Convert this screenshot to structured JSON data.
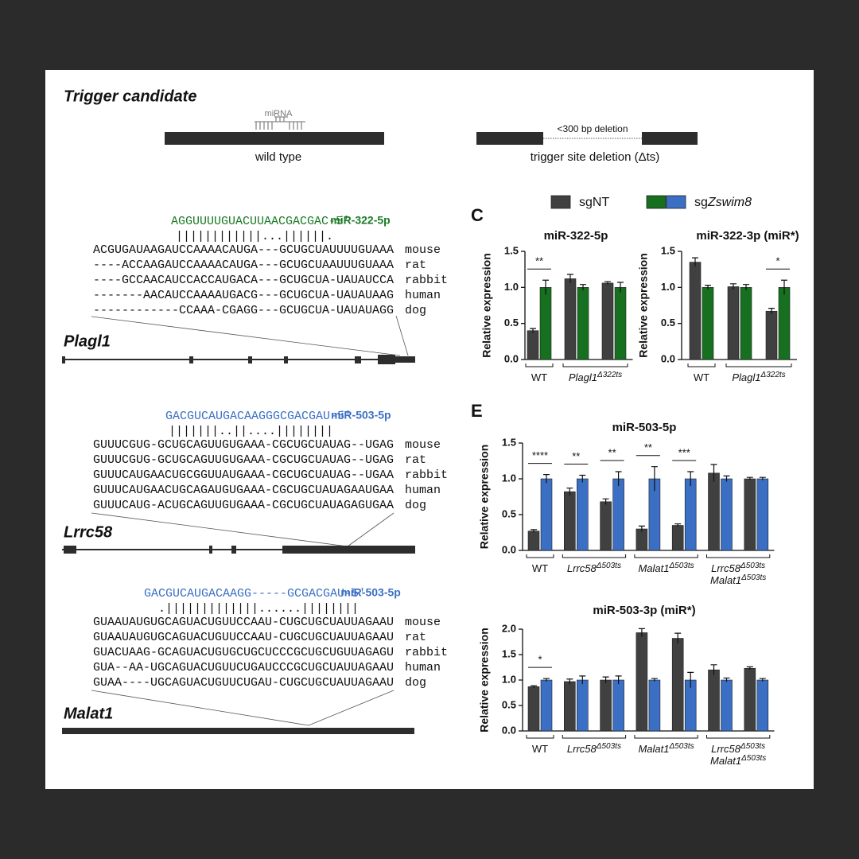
{
  "header": {
    "title": "Trigger candidate"
  },
  "schematic": {
    "mirna_label": "miRNA",
    "wild_type": "wild type",
    "deletion": "<300 bp deletion",
    "deletion_label": "trigger site deletion (Δts)"
  },
  "legend": [
    {
      "name": [
        "sgNT"
      ],
      "colors": [
        "#404040"
      ]
    },
    {
      "name": [
        "sg",
        "Zswim8"
      ],
      "colors": [
        "#16701f",
        "#3a6fc4"
      ]
    }
  ],
  "panel_letters": [
    "C",
    "E"
  ],
  "alignments": [
    {
      "mirna_seq": "AGGUUUUGUACUUAACGACGAC-5′",
      "mirna_name": "miR-322-5p",
      "color": "#1b7a25",
      "pairing": "||||||||||||...||||||.",
      "rows": [
        {
          "seq": "ACGUGAUAAGAUCCAAAACAUGA---GCUGCUAUUUUGUAAA",
          "species": "mouse"
        },
        {
          "seq": "----ACCAAGAUCCAAAACAUGA---GCUGCUAAUUUGUAAA",
          "species": "rat"
        },
        {
          "seq": "----GCCAACAUCCACCAUGACA---GCUGCUA-UAUAUCCA",
          "species": "rabbit"
        },
        {
          "seq": "-------AACAUCCAAAAUGACG---GCUGCUA-UAUAUAAG",
          "species": "human"
        },
        {
          "seq": "------------CCAAA-CGAGG---GCUGCUA-UAUAUAGG",
          "species": "dog"
        }
      ],
      "gene": "Plagl1"
    },
    {
      "mirna_seq": "GACGUCAUGACAAGGGCGACGAU-5′",
      "mirna_name": "miR-503-5p",
      "color": "#3a6fc4",
      "pairing": "|||||||..||....||||||||",
      "rows": [
        {
          "seq": "GUUUCGUG-GCUGCAGUUGUGAAA-CGCUGCUAUAG--UGAG",
          "species": "mouse"
        },
        {
          "seq": "GUUUCGUG-GCUGCAGUUGUGAAA-CGCUGCUAUAG--UGAG",
          "species": "rat"
        },
        {
          "seq": "GUUUCAUGAACUGCGGUUAUGAAA-CGCUGCUAUAG--UGAA",
          "species": "rabbit"
        },
        {
          "seq": "GUUUCAUGAACUGCAGAUGUGAAA-CGCUGCUAUAGAAUGAA",
          "species": "human"
        },
        {
          "seq": "GUUUCAUG-ACUGCAGUUGUGAAA-CGCUGCUAUAGAGUGAA",
          "species": "dog"
        }
      ],
      "gene": "Lrrc58"
    },
    {
      "mirna_seq": "GACGUCAUGACAAGG-----GCGACGAU-5′",
      "mirna_name": "miR-503-5p",
      "color": "#3a6fc4",
      "pairing": ".|||||||||||||......||||||||",
      "rows": [
        {
          "seq": "GUAAUAUGUGCAGUACUGUUCCAAU-CUGCUGCUAUUAGAAU",
          "species": "mouse"
        },
        {
          "seq": "GUAAUAUGUGCAGUACUGUUCCAAU-CUGCUGCUAUUAGAAU",
          "species": "rat"
        },
        {
          "seq": "GUACUAAG-GCAGUACUGUGCUGCUCCCGCUGCUGUUAGAGU",
          "species": "rabbit"
        },
        {
          "seq": "GUA--AA-UGCAGUACUGUUCUGAUCCCGCUGCUAUUAGAAU",
          "species": "human"
        },
        {
          "seq": "GUAA----UGCAGUACUGUUCUGAU-CUGCUGCUAUUAGAAU",
          "species": "dog"
        }
      ],
      "gene": "Malat1"
    }
  ],
  "chart_data": [
    {
      "type": "bar",
      "title": "miR-322-5p",
      "y_label": "Relative expression",
      "categories": [
        [
          [
            "WT"
          ]
        ],
        [
          [
            "Plagl1",
            "Δ322ts"
          ]
        ],
        null
      ],
      "significance": [
        "**",
        null,
        null
      ],
      "ylim": [
        0,
        1.5
      ],
      "yticks": [
        {
          "value": 0,
          "label": "0.0"
        },
        0.5,
        {
          "value": 1,
          "label": "1.0"
        },
        1.5
      ],
      "series": [
        {
          "color": "#404040",
          "values": [
            0.4,
            1.12,
            1.06
          ],
          "errors": [
            0.03,
            0.06,
            0.02
          ]
        },
        {
          "color": "#16701f",
          "values": [
            1.0,
            1.0,
            1.0
          ],
          "errors": [
            0.1,
            0.04,
            0.07
          ]
        }
      ]
    },
    {
      "type": "bar",
      "title": "miR-322-3p (miR*)",
      "y_label": "Relative expression",
      "categories": [
        [
          [
            "WT"
          ]
        ],
        [
          [
            "Plagl1",
            "Δ322ts"
          ]
        ],
        null
      ],
      "significance": [
        null,
        null,
        "*"
      ],
      "ylim": [
        0,
        1.5
      ],
      "yticks": [
        {
          "value": 0,
          "label": "0.0"
        },
        0.5,
        {
          "value": 1,
          "label": "1.0"
        },
        1.5
      ],
      "series": [
        {
          "color": "#404040",
          "values": [
            1.35,
            1.01,
            0.67
          ],
          "errors": [
            0.06,
            0.04,
            0.04
          ]
        },
        {
          "color": "#16701f",
          "values": [
            1.0,
            1.0,
            1.0
          ],
          "errors": [
            0.03,
            0.04,
            0.1
          ]
        }
      ]
    },
    {
      "type": "bar",
      "title": "miR-503-5p",
      "y_label": "Relative expression",
      "categories": [
        [
          [
            "WT"
          ]
        ],
        [
          [
            "Lrrc58",
            "Δ503ts"
          ]
        ],
        null,
        [
          [
            "Malat1",
            "Δ503ts"
          ]
        ],
        null,
        [
          [
            "Lrrc58",
            "Δ503ts"
          ],
          [
            "Malat1",
            "Δ503ts"
          ]
        ],
        null
      ],
      "significance": [
        "****",
        "**",
        "**",
        "**",
        "***",
        null,
        null
      ],
      "ylim": [
        0,
        1.5
      ],
      "yticks": [
        {
          "value": 0,
          "label": "0.0"
        },
        0.5,
        {
          "value": 1,
          "label": "1.0"
        },
        1.5
      ],
      "series": [
        {
          "color": "#404040",
          "values": [
            0.27,
            0.82,
            0.68,
            0.3,
            0.35,
            1.08,
            1.0
          ],
          "errors": [
            0.02,
            0.05,
            0.04,
            0.04,
            0.02,
            0.12,
            0.02
          ]
        },
        {
          "color": "#3a6fc4",
          "values": [
            1.0,
            1.0,
            1.0,
            1.0,
            1.0,
            1.0,
            1.0
          ],
          "errors": [
            0.06,
            0.05,
            0.1,
            0.17,
            0.1,
            0.04,
            0.02
          ]
        }
      ]
    },
    {
      "type": "bar",
      "title": "miR-503-3p (miR*)",
      "y_label": "Relative expression",
      "categories": [
        [
          [
            "WT"
          ]
        ],
        [
          [
            "Lrrc58",
            "Δ503ts"
          ]
        ],
        null,
        [
          [
            "Malat1",
            "Δ503ts"
          ]
        ],
        null,
        [
          [
            "Lrrc58",
            "Δ503ts"
          ],
          [
            "Malat1",
            "Δ503ts"
          ]
        ],
        null
      ],
      "significance": [
        "*",
        null,
        null,
        null,
        null,
        null,
        null
      ],
      "ylim": [
        0,
        2.0
      ],
      "yticks": [
        {
          "value": 0,
          "label": "0.0"
        },
        0.5,
        {
          "value": 1,
          "label": "1.0"
        },
        1.5,
        {
          "value": 2,
          "label": "2.0"
        }
      ],
      "series": [
        {
          "color": "#404040",
          "values": [
            0.87,
            0.97,
            1.0,
            1.93,
            1.82,
            1.2,
            1.23
          ],
          "errors": [
            0.02,
            0.05,
            0.06,
            0.08,
            0.1,
            0.1,
            0.03
          ]
        },
        {
          "color": "#3a6fc4",
          "values": [
            1.0,
            1.0,
            1.0,
            1.0,
            1.0,
            1.0,
            1.0
          ],
          "errors": [
            0.03,
            0.08,
            0.08,
            0.03,
            0.15,
            0.04,
            0.03
          ]
        }
      ]
    }
  ]
}
